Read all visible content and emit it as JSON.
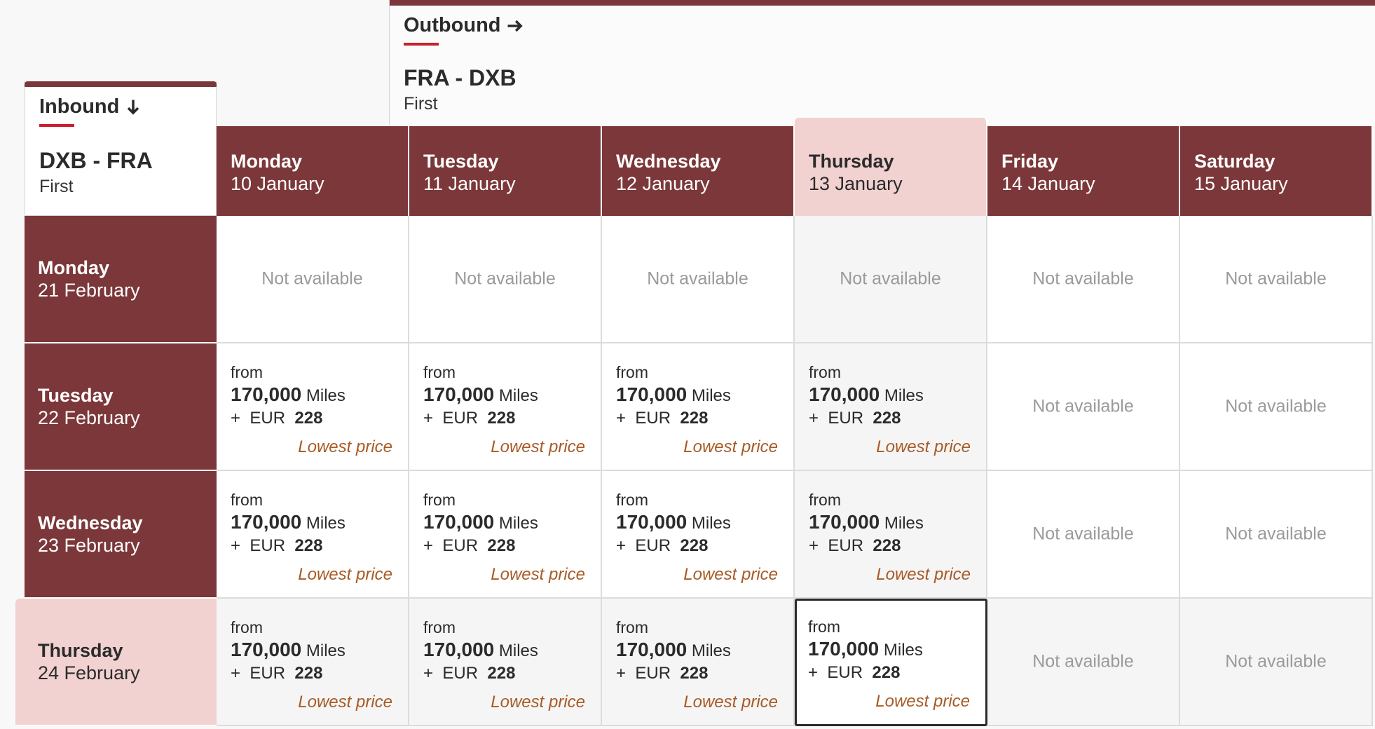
{
  "outbound": {
    "title": "Outbound",
    "icon": "arrow-right-icon",
    "route": "FRA - DXB",
    "cabin": "First"
  },
  "inbound": {
    "title": "Inbound",
    "icon": "arrow-down-icon",
    "route": "DXB - FRA",
    "cabin": "First"
  },
  "columns": [
    {
      "day": "Monday",
      "date": "10 January"
    },
    {
      "day": "Tuesday",
      "date": "11 January"
    },
    {
      "day": "Wednesday",
      "date": "12 January"
    },
    {
      "day": "Thursday",
      "date": "13 January",
      "selected": true
    },
    {
      "day": "Friday",
      "date": "14 January"
    },
    {
      "day": "Saturday",
      "date": "15 January"
    }
  ],
  "rows": [
    {
      "day": "Monday",
      "date": "21 February"
    },
    {
      "day": "Tuesday",
      "date": "22 February"
    },
    {
      "day": "Wednesday",
      "date": "23 February"
    },
    {
      "day": "Thursday",
      "date": "24 February",
      "selected": true
    }
  ],
  "labels": {
    "not_available": "Not available",
    "from": "from",
    "miles_unit": "Miles",
    "plus": "+",
    "currency": "EUR",
    "lowest_price": "Lowest price"
  },
  "offer": {
    "miles": "170,000",
    "eur": "228"
  },
  "availability": [
    [
      false,
      false,
      false,
      false,
      false,
      false
    ],
    [
      true,
      true,
      true,
      true,
      false,
      false
    ],
    [
      true,
      true,
      true,
      true,
      false,
      false
    ],
    [
      true,
      true,
      true,
      true,
      false,
      false
    ]
  ],
  "active_cell": {
    "row": 3,
    "col": 3
  },
  "colors": {
    "header_bg": "#7b3739",
    "selected_bg": "#f2d1d1",
    "accent_red": "#c8202f",
    "lowest_price": "#a85a26"
  }
}
